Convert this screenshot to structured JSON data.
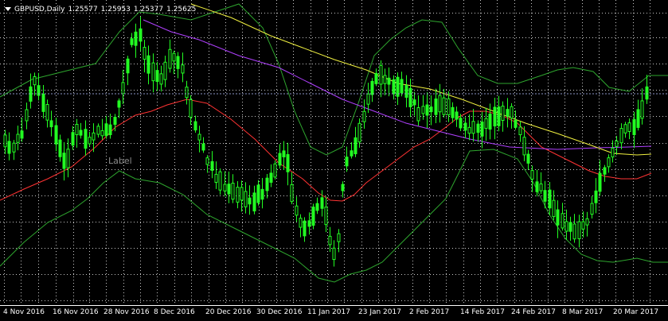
{
  "header": {
    "symbol_timeframe": "GBPUSD,Daily",
    "open": "1.25577",
    "high": "1.25953",
    "low": "1.25377",
    "close": "1.25625"
  },
  "object_label": "Label",
  "colors": {
    "background": "#000000",
    "grid": "#c8c8c8",
    "candle": "#22ff22",
    "bollinger": "#2ea52e",
    "ma_fast": "#ff3333",
    "ma_medium": "#b040ff",
    "ma_slow": "#f0f040",
    "price_line": "#8c96c8"
  },
  "chart_data": {
    "type": "candlestick",
    "x_tick_labels": [
      "4 Nov 2016",
      "16 Nov 2016",
      "28 Nov 2016",
      "8 Dec 2016",
      "20 Dec 2016",
      "30 Dec 2016",
      "11 Jan 2017",
      "23 Jan 2017",
      "2 Feb 2017",
      "14 Feb 2017",
      "24 Feb 2017",
      "8 Mar 2017",
      "20 Mar 2017"
    ],
    "current_price": 1.25625,
    "grid": true
  }
}
